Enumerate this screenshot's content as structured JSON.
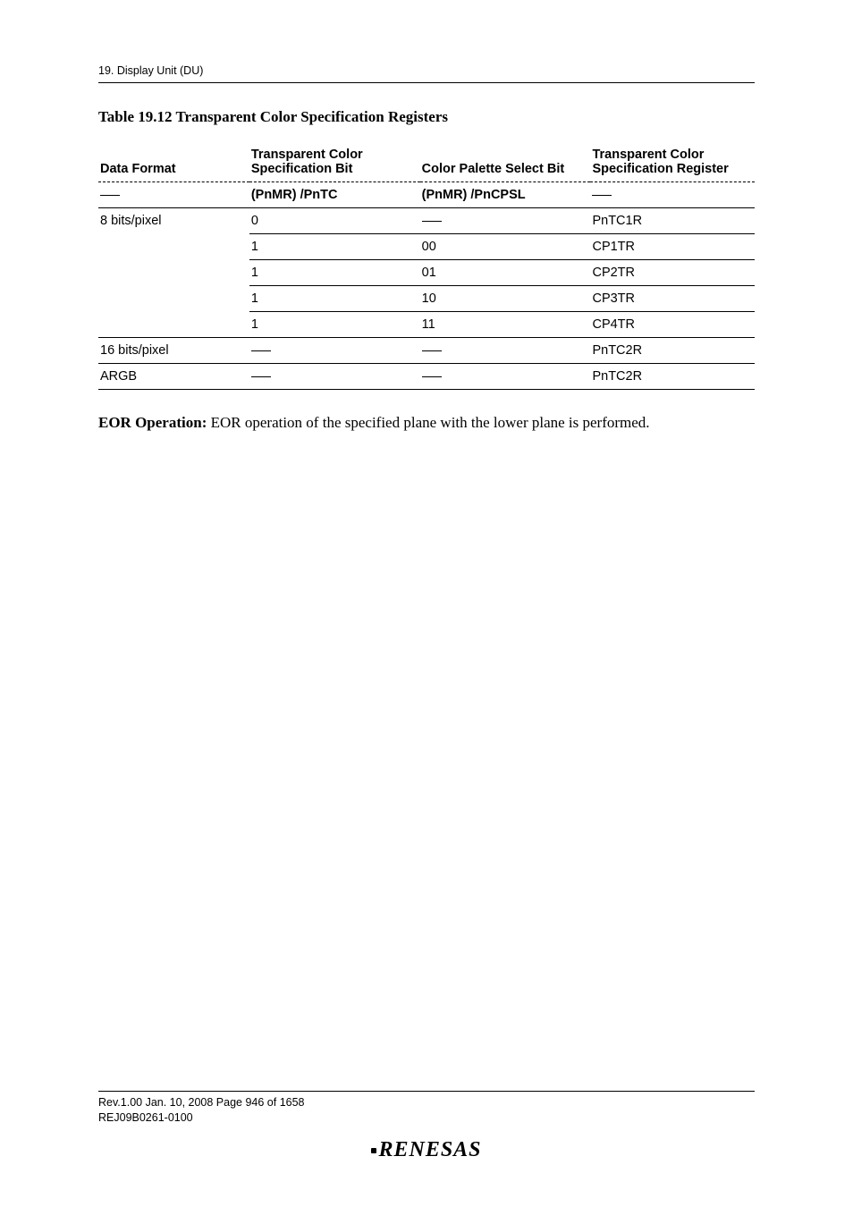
{
  "header": {
    "running": "19.   Display Unit (DU)"
  },
  "caption": "Table 19.12  Transparent Color Specification Registers",
  "table": {
    "head1": {
      "c1": "Data Format",
      "c2": "Transparent Color Specification Bit",
      "c3": "Color Palette Select Bit",
      "c4": "Transparent Color Specification Register"
    },
    "head2": {
      "c2": "(PnMR) /PnTC",
      "c3": "(PnMR) /PnCPSL"
    },
    "rows": [
      {
        "c1": "8 bits/pixel",
        "c2": "0",
        "c3": "",
        "c4": "PnTC1R"
      },
      {
        "c1": "",
        "c2": "1",
        "c3": "00",
        "c4": "CP1TR"
      },
      {
        "c1": "",
        "c2": "1",
        "c3": "01",
        "c4": "CP2TR"
      },
      {
        "c1": "",
        "c2": "1",
        "c3": "10",
        "c4": "CP3TR"
      },
      {
        "c1": "",
        "c2": "1",
        "c3": "11",
        "c4": "CP4TR"
      },
      {
        "c1": "16 bits/pixel",
        "c2": "",
        "c3": "",
        "c4": "PnTC2R"
      },
      {
        "c1": "ARGB",
        "c2": "",
        "c3": "",
        "c4": "PnTC2R"
      }
    ]
  },
  "paragraph": {
    "lead": "EOR Operation:",
    "rest": " EOR operation of the specified plane with the lower plane is performed."
  },
  "footer": {
    "line1": "Rev.1.00  Jan. 10, 2008  Page 946 of 1658",
    "line2": "REJ09B0261-0100",
    "logo": "RENESAS"
  }
}
